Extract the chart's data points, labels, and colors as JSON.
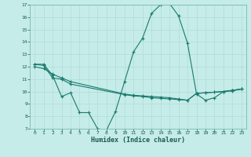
{
  "x_range": [
    -0.5,
    23.5
  ],
  "y_range": [
    7,
    17
  ],
  "xlabel": "Humidex (Indice chaleur)",
  "background_color": "#c5ece8",
  "grid_color": "#b0dcd8",
  "line_color": "#1a7a6e",
  "line1_x": [
    0,
    1,
    2,
    3,
    4,
    5,
    6,
    7,
    8,
    9,
    10,
    11,
    12,
    13,
    14,
    15,
    16,
    17,
    18,
    19,
    20,
    21,
    22,
    23
  ],
  "line1_y": [
    12.2,
    12.2,
    11.3,
    9.6,
    9.9,
    8.3,
    8.3,
    7.0,
    6.9,
    8.4,
    10.8,
    13.2,
    14.3,
    16.3,
    17.0,
    17.1,
    16.1,
    13.9,
    9.8,
    9.3,
    9.5,
    10.0,
    10.1,
    10.2
  ],
  "line2_x": [
    0,
    1,
    2,
    3,
    4,
    10,
    11,
    12,
    13,
    14,
    15,
    16,
    17,
    18,
    19,
    20,
    21,
    22,
    23
  ],
  "line2_y": [
    12.2,
    12.1,
    11.1,
    11.0,
    10.6,
    9.75,
    9.65,
    9.6,
    9.5,
    9.45,
    9.4,
    9.35,
    9.3,
    9.85,
    9.9,
    9.95,
    10.0,
    10.05,
    10.2
  ],
  "line3_x": [
    0,
    1,
    2,
    3,
    4,
    10,
    11,
    12,
    13,
    14,
    15,
    16,
    17,
    18,
    19,
    20,
    21,
    22,
    23
  ],
  "line3_y": [
    12.0,
    11.85,
    11.4,
    11.1,
    10.8,
    9.8,
    9.7,
    9.65,
    9.6,
    9.55,
    9.5,
    9.4,
    9.3,
    9.85,
    9.9,
    9.95,
    10.0,
    10.1,
    10.2
  ],
  "yticks": [
    7,
    8,
    9,
    10,
    11,
    12,
    13,
    14,
    15,
    16,
    17
  ],
  "xticks": [
    0,
    1,
    2,
    3,
    4,
    5,
    6,
    7,
    8,
    9,
    10,
    11,
    12,
    13,
    14,
    15,
    16,
    17,
    18,
    19,
    20,
    21,
    22,
    23
  ],
  "figsize": [
    3.2,
    2.0
  ],
  "dpi": 100
}
